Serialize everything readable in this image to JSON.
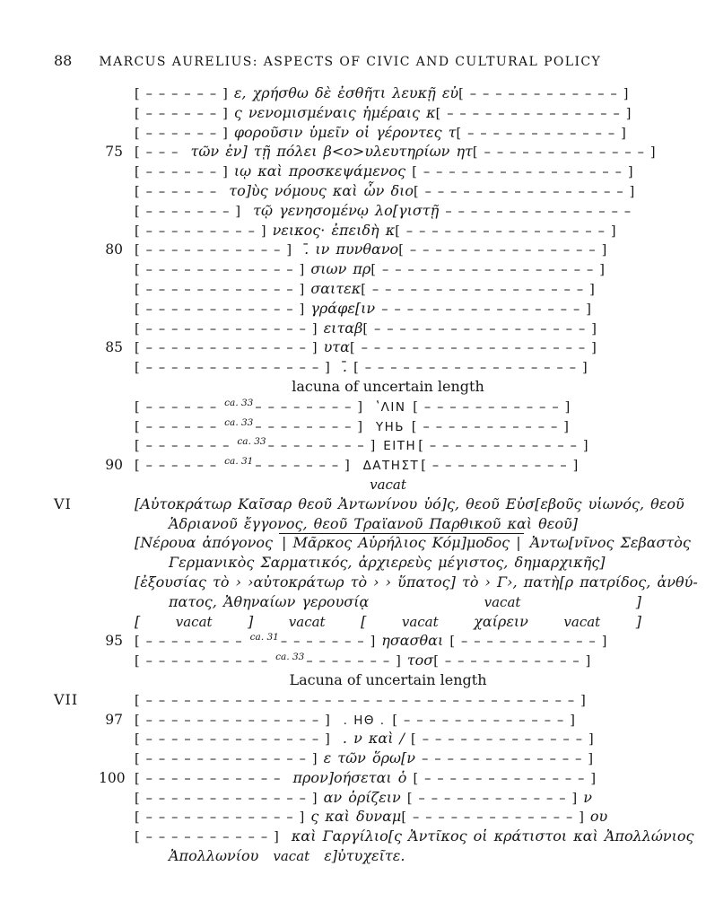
{
  "colors": {
    "ink": "#161616",
    "paper": "#ffffff"
  },
  "page": {
    "number": "88",
    "title": "MARCUS AURELIUS:  ASPECTS OF CIVIC AND CULTURAL POLICY"
  },
  "lines": [
    {
      "segments": [
        {
          "s": "d",
          "t": "[––––––]"
        },
        {
          "s": "g",
          "t": "ε, χρήσθω δὲ ἐσθῆτι λευκῇ εὐ"
        },
        {
          "s": "d",
          "t": "[––––––––––––]"
        }
      ]
    },
    {
      "segments": [
        {
          "s": "d",
          "t": "[––––––]"
        },
        {
          "s": "g",
          "t": "ς νενομισμέναις ἡμέραις κ"
        },
        {
          "s": "d",
          "t": "[––––––––––––––]"
        }
      ]
    },
    {
      "segments": [
        {
          "s": "d",
          "t": "[––––––]"
        },
        {
          "s": "g",
          "t": "φοροῦσιν ὑμεῖν οἱ γέροντες τ"
        },
        {
          "s": "d",
          "t": "[––––––––––––]"
        }
      ]
    },
    {
      "num": "75",
      "segments": [
        {
          "s": "d",
          "t": "[–––"
        },
        {
          "s": "g",
          "t": " τῶν ἐν] τῇ πόλει β<ο>υλευτηρίων ητ"
        },
        {
          "s": "d",
          "t": "[–––––––––––––]"
        }
      ]
    },
    {
      "segments": [
        {
          "s": "d",
          "t": "[––––––]"
        },
        {
          "s": "g",
          "t": "ιῳ καὶ προσκεψάμενος "
        },
        {
          "s": "d",
          "t": "[––––––––––––––––]"
        }
      ]
    },
    {
      "segments": [
        {
          "s": "d",
          "t": "[––––––"
        },
        {
          "s": "g",
          "t": " το]ὺς νόμους καὶ ὧν διο"
        },
        {
          "s": "d",
          "t": "[––––––––––––––––]"
        }
      ]
    },
    {
      "segments": [
        {
          "s": "d",
          "t": "[–––––––]"
        },
        {
          "s": "g",
          "t": " τῷ γενησομένῳ λο[γιστῇ "
        },
        {
          "s": "d",
          "t": "–––––––––––––––"
        }
      ]
    },
    {
      "segments": [
        {
          "s": "d",
          "t": "[–––––––––]"
        },
        {
          "s": "g",
          "t": "νεικος· ἐπειδὴ κ"
        },
        {
          "s": "d",
          "t": "[––––––––––––––––]"
        }
      ]
    },
    {
      "num": "80",
      "segments": [
        {
          "s": "d",
          "t": "[–––––––––––]"
        },
        {
          "s": "g",
          "t": " .̄ ιν πυνθανο"
        },
        {
          "s": "d",
          "t": "[–––––––––––––––]"
        }
      ]
    },
    {
      "segments": [
        {
          "s": "d",
          "t": "[––––––––––––]"
        },
        {
          "s": "g",
          "t": "σιων πρ"
        },
        {
          "s": "d",
          "t": "[–––––––––––––––––]"
        }
      ]
    },
    {
      "segments": [
        {
          "s": "d",
          "t": "[––––––––––––]"
        },
        {
          "s": "g",
          "t": "σαιτεκ"
        },
        {
          "s": "d",
          "t": "[–––––––––––––––––]"
        }
      ]
    },
    {
      "segments": [
        {
          "s": "d",
          "t": "[––––––––––––]"
        },
        {
          "s": "g",
          "t": "γράφε[ιν "
        },
        {
          "s": "d",
          "t": "––––––––––––––––]"
        }
      ]
    },
    {
      "segments": [
        {
          "s": "d",
          "t": "[–––––––––––––]"
        },
        {
          "s": "g",
          "t": "ειταβ"
        },
        {
          "s": "d",
          "t": "[–––––––––––––––––]"
        }
      ]
    },
    {
      "num": "85",
      "segments": [
        {
          "s": "d",
          "t": "[–––––––––––––]"
        },
        {
          "s": "g",
          "t": "υτα"
        },
        {
          "s": "d",
          "t": "[––––––––––––––––––]"
        }
      ]
    },
    {
      "segments": [
        {
          "s": "d",
          "t": "[––––––––––––––]"
        },
        {
          "s": "g",
          "t": " .̄ "
        },
        {
          "s": "d",
          "t": "[–––––––––––––––––]"
        }
      ]
    },
    {
      "center": true,
      "segments": [
        {
          "s": "r",
          "t": "lacuna of uncertain length"
        }
      ]
    },
    {
      "segments": [
        {
          "s": "d",
          "t": "[––––––"
        },
        {
          "s": "sup",
          "t": "ca. 33"
        },
        {
          "s": "d",
          "t": "––––––––]"
        },
        {
          "s": "c",
          "t": " ʽΛΙΝ "
        },
        {
          "s": "d",
          "t": "[–––––––––––]"
        }
      ]
    },
    {
      "segments": [
        {
          "s": "d",
          "t": "[––––––"
        },
        {
          "s": "sup",
          "t": "ca. 33"
        },
        {
          "s": "d",
          "t": "––––––––]"
        },
        {
          "s": "c",
          "t": " ΥΗЬ "
        },
        {
          "s": "d",
          "t": "[–––––––––––]"
        }
      ]
    },
    {
      "segments": [
        {
          "s": "d",
          "t": "[–––––––"
        },
        {
          "s": "sup",
          "t": "ca. 33"
        },
        {
          "s": "d",
          "t": "––––––––]"
        },
        {
          "s": "c",
          "t": "ΕΙΤΗ"
        },
        {
          "s": "d",
          "t": "[––––––––––––]"
        }
      ]
    },
    {
      "num": "90",
      "segments": [
        {
          "s": "d",
          "t": "[––––––"
        },
        {
          "s": "sup",
          "t": "ca. 31"
        },
        {
          "s": "d",
          "t": "–––––––]"
        },
        {
          "s": "c",
          "t": " ΔΑΤΗΣΤ"
        },
        {
          "s": "d",
          "t": "[–––––––––––]"
        }
      ]
    },
    {
      "center": true,
      "segments": [
        {
          "s": "v",
          "t": "vacat"
        }
      ]
    },
    {
      "sec": "VI",
      "segments": [
        {
          "s": "g",
          "t": "[Αὐτοκράτωρ Καῖσαρ θεοῦ Ἀντωνίνου ὑό]ς, θεοῦ Εὐσ[εβοῦς υἱωνός, θεοῦ"
        }
      ]
    },
    {
      "indent": true,
      "segments": [
        {
          "s": "g",
          "t": "Ἁδριανοῦ ἔγγονος, θεοῦ Τραϊανοῦ Παρθικοῦ καὶ θεοῦ]"
        }
      ]
    },
    {
      "segments": [
        {
          "s": "g",
          "t": "[Νέρουα ἀπόγονος "
        },
        {
          "s": "box",
          "t": "| Μᾶρκος Αὐρήλιος Κόμ]μοδος |"
        },
        {
          "s": "g",
          "t": " Ἀντω[νῖνος Σεβαστὸς"
        }
      ]
    },
    {
      "indent": true,
      "segments": [
        {
          "s": "g",
          "t": "Γερμανικὸς Σαρματικός, ἀρχιερεὺς μέγιστος, δημαρχικῆς]"
        }
      ]
    },
    {
      "segments": [
        {
          "s": "g",
          "t": "[ἐξουσίας τὸ › ›αὐτοκράτωρ τὸ ›  › ὕπατος] τὸ › Γ›, πατὴ[ρ πατρίδος, ἀνθύ-"
        }
      ]
    },
    {
      "spread": true,
      "indent": true,
      "segments": [
        {
          "s": "g",
          "t": "πατος, Ἀθηναίων γερουσίᾳ"
        },
        {
          "s": "v",
          "t": "vacat"
        },
        {
          "s": "g",
          "t": "]"
        }
      ]
    },
    {
      "spread": true,
      "segments": [
        {
          "s": "g",
          "t": "["
        },
        {
          "s": "v",
          "t": "vacat"
        },
        {
          "s": "g",
          "t": "]"
        },
        {
          "s": "v",
          "t": "vacat"
        },
        {
          "s": "g",
          "t": "["
        },
        {
          "s": "v",
          "t": "vacat"
        },
        {
          "s": "g",
          "t": "χαίρειν"
        },
        {
          "s": "v",
          "t": "vacat"
        },
        {
          "s": "g",
          "t": "]"
        }
      ]
    },
    {
      "num": "95",
      "segments": [
        {
          "s": "d",
          "t": "[––––––––"
        },
        {
          "s": "sup",
          "t": "ca. 31"
        },
        {
          "s": "d",
          "t": "–––––––]"
        },
        {
          "s": "g",
          "t": "ησασθαι "
        },
        {
          "s": "d",
          "t": "[–––––––––––]"
        }
      ]
    },
    {
      "segments": [
        {
          "s": "d",
          "t": "[––––––––––"
        },
        {
          "s": "sup",
          "t": "ca. 33"
        },
        {
          "s": "d",
          "t": "–––––––]"
        },
        {
          "s": "g",
          "t": "τοσ"
        },
        {
          "s": "d",
          "t": "[–––––––––––]"
        }
      ]
    },
    {
      "center": true,
      "segments": [
        {
          "s": "r",
          "t": "Lacuna of uncertain length"
        }
      ]
    },
    {
      "sec": "VII",
      "segments": [
        {
          "s": "d",
          "t": "[––––––––––––––––––––––––––––––––––]"
        }
      ]
    },
    {
      "num": "97",
      "segments": [
        {
          "s": "d",
          "t": "[––––––––––––––]"
        },
        {
          "s": "c",
          "t": " . ΗΘ . "
        },
        {
          "s": "d",
          "t": "[–––––––––––––]"
        }
      ]
    },
    {
      "segments": [
        {
          "s": "d",
          "t": "[––––––––––––––]"
        },
        {
          "s": "g",
          "t": " . ν καὶ / "
        },
        {
          "s": "d",
          "t": "[–––––––––––––]"
        }
      ]
    },
    {
      "segments": [
        {
          "s": "d",
          "t": "[–––––––––––––]"
        },
        {
          "s": "g",
          "t": "ε τῶν ὅρω[ν "
        },
        {
          "s": "d",
          "t": "–––––––––––––]"
        }
      ]
    },
    {
      "num": "100",
      "segments": [
        {
          "s": "d",
          "t": "[–––––––––––"
        },
        {
          "s": "g",
          "t": " προν]οήσεται ὁ "
        },
        {
          "s": "d",
          "t": "[–––––––––––––]"
        }
      ]
    },
    {
      "segments": [
        {
          "s": "d",
          "t": "[–––––––––––––]"
        },
        {
          "s": "g",
          "t": "αν ὁρίζειν "
        },
        {
          "s": "d",
          "t": "[––––––––––––]"
        },
        {
          "s": "g",
          "t": "ν"
        }
      ]
    },
    {
      "segments": [
        {
          "s": "d",
          "t": "[––––––––––––]"
        },
        {
          "s": "g",
          "t": "ς καὶ δυναμ"
        },
        {
          "s": "d",
          "t": "[–––––––––––––]"
        },
        {
          "s": "g",
          "t": "ου"
        }
      ]
    },
    {
      "segments": [
        {
          "s": "d",
          "t": "[––––––––––]"
        },
        {
          "s": "g",
          "t": " καὶ Γαργίλιο[ς Ἀντῖκος οἱ κράτιστοι καὶ Ἀπολλώνιος"
        }
      ]
    },
    {
      "indent": true,
      "segments": [
        {
          "s": "g",
          "t": "Ἀπολλωνίου  "
        },
        {
          "s": "v",
          "t": "vacat"
        },
        {
          "s": "g",
          "t": "  ε]ὐτυχεῖτε."
        }
      ]
    }
  ]
}
